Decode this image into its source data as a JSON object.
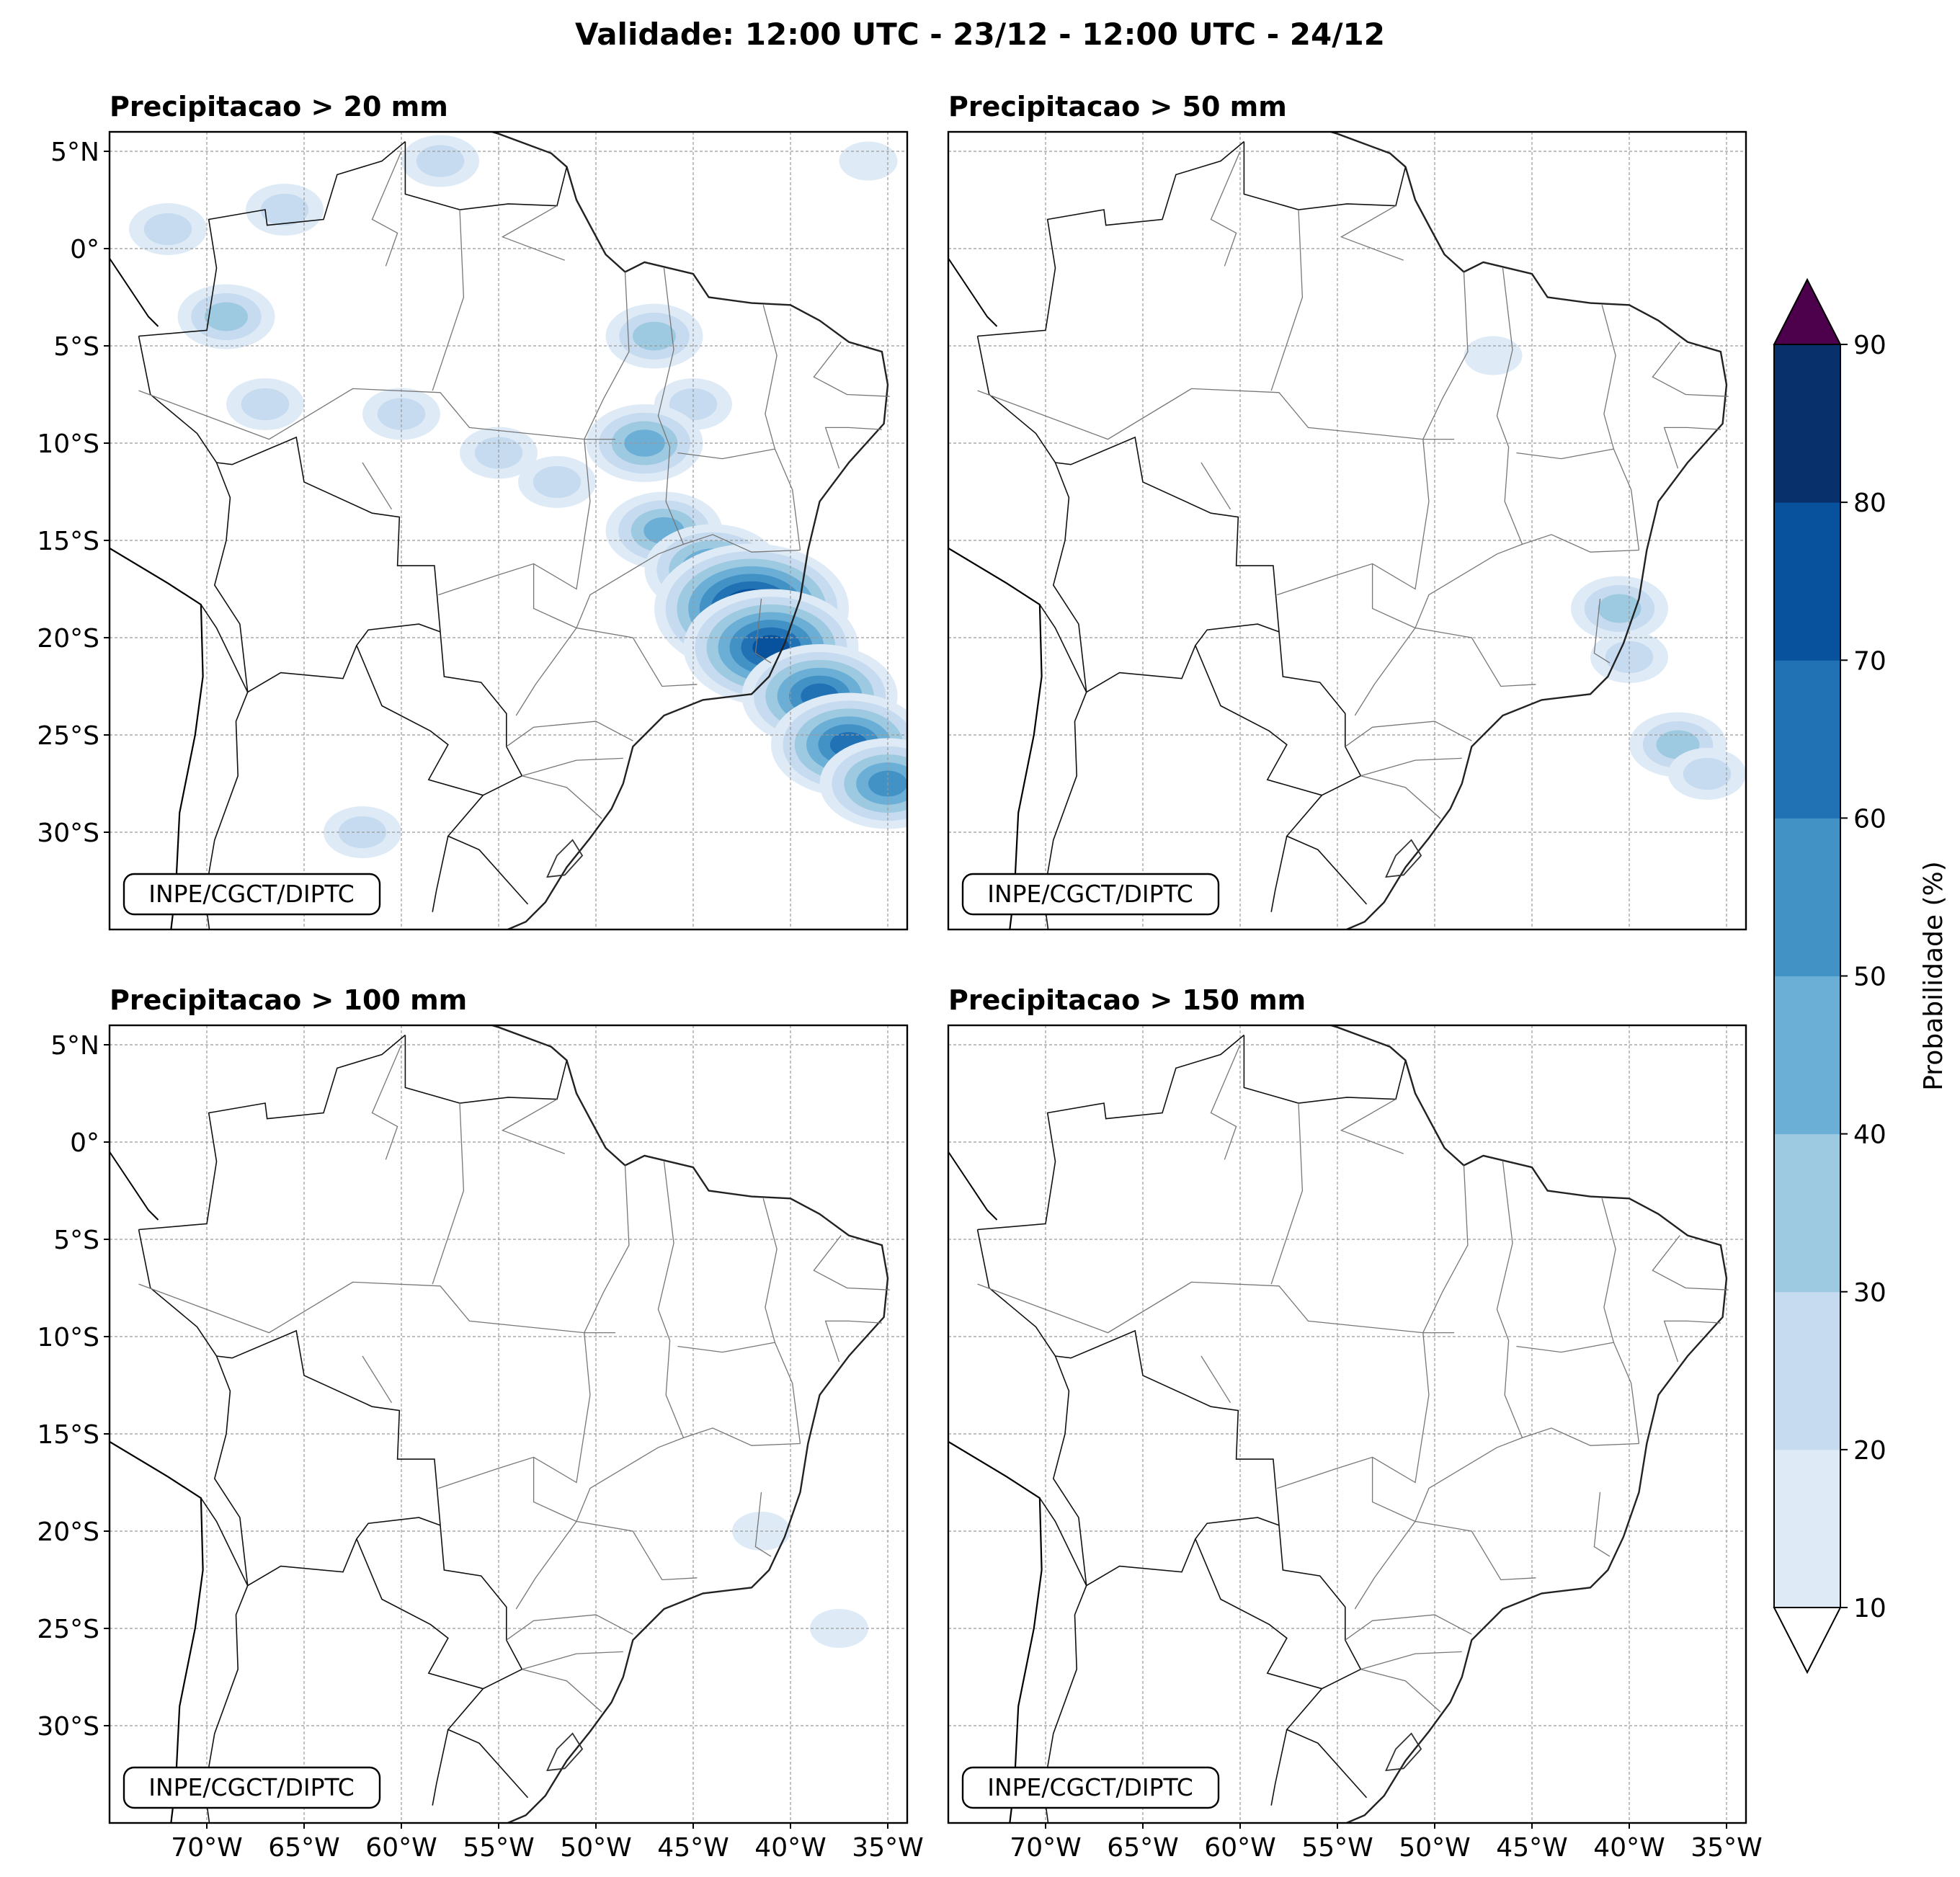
{
  "title": "Validade: 12:00 UTC - 23/12 - 12:00 UTC - 24/12",
  "panels": [
    {
      "id": "p20",
      "title": "Precipitacao > 20 mm"
    },
    {
      "id": "p50",
      "title": "Precipitacao > 50 mm"
    },
    {
      "id": "p100",
      "title": "Precipitacao > 100 mm"
    },
    {
      "id": "p150",
      "title": "Precipitacao > 150 mm"
    }
  ],
  "credit": "INPE/CGCT/DIPTC",
  "axes": {
    "lon_ticks": [
      "70°W",
      "65°W",
      "60°W",
      "55°W",
      "50°W",
      "45°W",
      "40°W",
      "35°W"
    ],
    "lat_ticks": [
      "5°N",
      "0°",
      "5°S",
      "10°S",
      "15°S",
      "20°S",
      "25°S",
      "30°S"
    ],
    "lon_range": [
      -75,
      -34
    ],
    "lat_range": [
      -35,
      6
    ]
  },
  "colorbar": {
    "label": "Probabilidade (%)",
    "ticks": [
      "10",
      "20",
      "30",
      "40",
      "50",
      "60",
      "70",
      "80",
      "90"
    ],
    "colors": [
      "#deebf7",
      "#c6dbef",
      "#9ecae1",
      "#6baed6",
      "#4292c6",
      "#2171b5",
      "#08519c",
      "#08306b"
    ],
    "under_color": "#ffffff",
    "over_color": "#4d004b"
  },
  "chart_data": {
    "type": "heatmap",
    "units": "%",
    "levels": [
      10,
      20,
      30,
      40,
      50,
      60,
      70,
      80,
      90
    ],
    "fields": {
      "p20": [
        {
          "lon": -69.0,
          "lat": -3.5,
          "p": 30
        },
        {
          "lon": -66.0,
          "lat": 2.0,
          "p": 20
        },
        {
          "lon": -72.0,
          "lat": 1.0,
          "p": 20
        },
        {
          "lon": -67.0,
          "lat": -8.0,
          "p": 20
        },
        {
          "lon": -60.0,
          "lat": -8.5,
          "p": 20
        },
        {
          "lon": -55.0,
          "lat": -10.5,
          "p": 20
        },
        {
          "lon": -47.0,
          "lat": -4.5,
          "p": 30
        },
        {
          "lon": -45.0,
          "lat": -8.0,
          "p": 20
        },
        {
          "lon": -47.5,
          "lat": -10.0,
          "p": 40
        },
        {
          "lon": -46.5,
          "lat": -14.5,
          "p": 40
        },
        {
          "lon": -44.0,
          "lat": -16.5,
          "p": 50
        },
        {
          "lon": -42.0,
          "lat": -18.5,
          "p": 80
        },
        {
          "lon": -41.0,
          "lat": -20.5,
          "p": 70
        },
        {
          "lon": -38.5,
          "lat": -23.0,
          "p": 60
        },
        {
          "lon": -37.0,
          "lat": -25.5,
          "p": 60
        },
        {
          "lon": -35.0,
          "lat": -27.5,
          "p": 50
        },
        {
          "lon": -52.0,
          "lat": -12.0,
          "p": 20
        },
        {
          "lon": -62.0,
          "lat": -30.0,
          "p": 20
        },
        {
          "lon": -58.0,
          "lat": 4.5,
          "p": 20
        },
        {
          "lon": -36.0,
          "lat": 4.5,
          "p": 10
        }
      ],
      "p50": [
        {
          "lon": -40.5,
          "lat": -18.5,
          "p": 30
        },
        {
          "lon": -40.0,
          "lat": -21.0,
          "p": 20
        },
        {
          "lon": -37.5,
          "lat": -25.5,
          "p": 30
        },
        {
          "lon": -36.0,
          "lat": -27.0,
          "p": 20
        },
        {
          "lon": -47.0,
          "lat": -5.5,
          "p": 10
        }
      ],
      "p100": [
        {
          "lon": -41.5,
          "lat": -20.0,
          "p": 10
        },
        {
          "lon": -37.5,
          "lat": -25.0,
          "p": 10
        }
      ],
      "p150": []
    }
  }
}
